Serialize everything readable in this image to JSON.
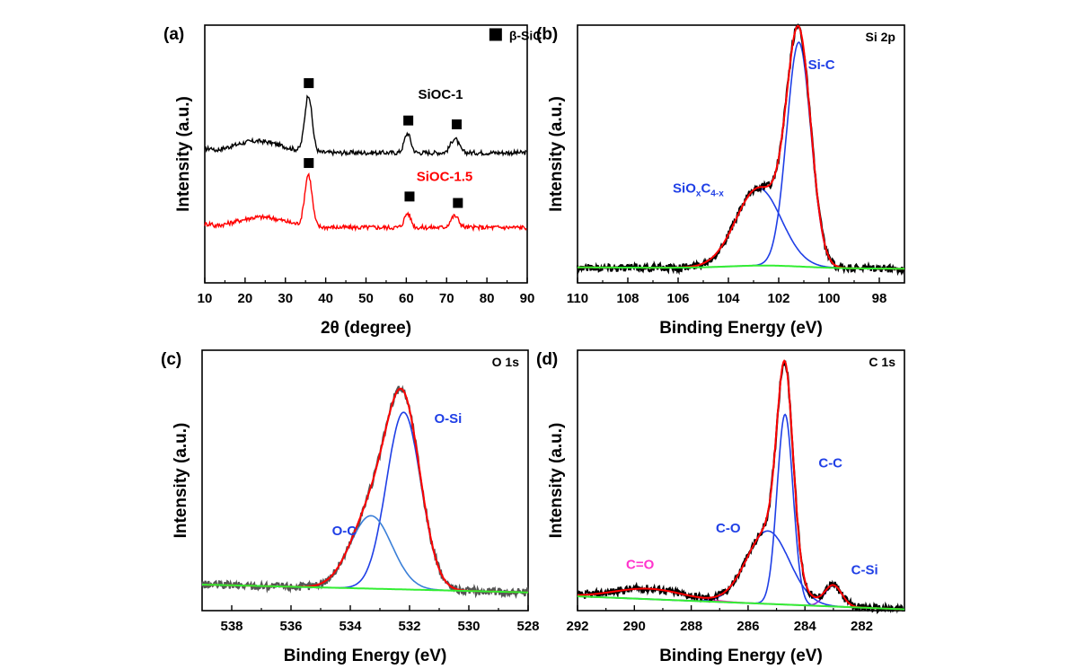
{
  "chart_data": [
    {
      "panel": "(a)",
      "type": "line",
      "xlabel": "2θ (degree)",
      "ylabel": "Intensity (a.u.)",
      "xlim": [
        10,
        90
      ],
      "ylim": [
        0,
        10
      ],
      "xticks": [
        10,
        20,
        30,
        40,
        50,
        60,
        70,
        80,
        90
      ],
      "legend": {
        "label": "β-SiC",
        "position": "top-right",
        "marker": "square"
      },
      "series": [
        {
          "name": "SiOC-1",
          "color": "#000000",
          "offset": 5.05,
          "peaks": [
            {
              "x": 35.7,
              "h": 2.2,
              "w": 0.9
            },
            {
              "x": 60.3,
              "h": 0.75,
              "w": 0.8
            },
            {
              "x": 72.0,
              "h": 0.55,
              "w": 1.0
            }
          ],
          "hump": {
            "x": 23,
            "h": 0.45,
            "w": 6
          }
        },
        {
          "name": "SiOC-1.5",
          "color": "#ff0000",
          "offset": 2.15,
          "peaks": [
            {
              "x": 35.7,
              "h": 2.0,
              "w": 0.9
            },
            {
              "x": 60.3,
              "h": 0.55,
              "w": 0.8
            },
            {
              "x": 72.0,
              "h": 0.45,
              "w": 1.0
            }
          ],
          "hump": {
            "x": 24,
            "h": 0.4,
            "w": 6
          }
        }
      ],
      "markers": [
        {
          "x": 35.8,
          "y": 7.75
        },
        {
          "x": 60.5,
          "y": 6.3
        },
        {
          "x": 72.5,
          "y": 6.15
        },
        {
          "x": 35.8,
          "y": 4.65
        },
        {
          "x": 60.8,
          "y": 3.35
        },
        {
          "x": 72.8,
          "y": 3.1
        }
      ],
      "annotations": [
        {
          "text": "SiOC-1",
          "x": 68.5,
          "y": 7.15,
          "color": "#000000"
        },
        {
          "text": "SiOC-1.5",
          "x": 69.5,
          "y": 3.95,
          "color": "#ff0000"
        }
      ]
    },
    {
      "panel": "(b)",
      "type": "line",
      "tag": "Si 2p",
      "xlabel": "Binding Energy (eV)",
      "ylabel": "Intensity (a.u.)",
      "xlim": [
        110,
        97
      ],
      "ylim": [
        0,
        10
      ],
      "xticks": [
        110,
        108,
        106,
        104,
        102,
        100,
        98
      ],
      "baseline": {
        "color": "#33ee33",
        "from": 0.6,
        "to": 0.55,
        "bump_x": 102.5,
        "bump_h": 0.1
      },
      "components": [
        {
          "name": "Si-C",
          "color": "#1f3fe6",
          "center": 101.2,
          "height": 8.7,
          "sigma": 0.48
        },
        {
          "name": "SiOxC4-x",
          "color": "#1f3fe6",
          "center": 102.8,
          "height": 3.0,
          "sigma": 0.9
        }
      ],
      "fit_color": "#ff0000",
      "data_color": "#000000",
      "annotations": [
        {
          "text": "Si-C",
          "x": 100.3,
          "y": 8.3,
          "color": "#1f3fe6"
        },
        {
          "text": "SiO",
          "sub1": "x",
          "mid": "C",
          "sub2": "4-x",
          "x": 105.2,
          "y": 3.5,
          "color": "#1f3fe6"
        }
      ]
    },
    {
      "panel": "(c)",
      "type": "line",
      "tag": "O 1s",
      "xlabel": "Binding Energy (eV)",
      "ylabel": "Intensity (a.u.)",
      "xlim": [
        539,
        528
      ],
      "ylim": [
        0,
        10
      ],
      "xticks": [
        538,
        536,
        534,
        532,
        530,
        528
      ],
      "baseline": {
        "color": "#33ee33",
        "from": 1.0,
        "to": 0.7,
        "bump_x": 533,
        "bump_h": 0.0
      },
      "components": [
        {
          "name": "O-Si",
          "color": "#1f3fe6",
          "center": 532.2,
          "height": 6.8,
          "sigma": 0.58
        },
        {
          "name": "O-C",
          "color": "#3a7fd8",
          "center": 533.3,
          "height": 2.8,
          "sigma": 0.7
        }
      ],
      "fit_color": "#ff0000",
      "data_color": "#555555",
      "annotations": [
        {
          "text": "O-Si",
          "x": 530.7,
          "y": 7.2,
          "color": "#1f3fe6"
        },
        {
          "text": "O-C",
          "x": 534.2,
          "y": 2.9,
          "color": "#1f3fe6"
        }
      ]
    },
    {
      "panel": "(d)",
      "type": "line",
      "tag": "C 1s",
      "xlabel": "Binding Energy (eV)",
      "ylabel": "Intensity (a.u.)",
      "xlim": [
        292,
        280.5
      ],
      "ylim": [
        0,
        10
      ],
      "xticks": [
        292,
        290,
        288,
        286,
        284,
        282
      ],
      "baseline": {
        "color": "#33ee33",
        "from": 0.55,
        "to": 0.05,
        "bump_x": 285,
        "bump_h": 0.0
      },
      "components": [
        {
          "name": "C-C",
          "color": "#1f3fe6",
          "center": 284.7,
          "height": 7.3,
          "sigma": 0.28
        },
        {
          "name": "C-O",
          "color": "#1f3fe6",
          "center": 285.3,
          "height": 2.8,
          "sigma": 0.75
        },
        {
          "name": "C-Si",
          "color": "#8a2be2",
          "center": 283.0,
          "height": 0.8,
          "sigma": 0.3
        },
        {
          "name": "C=O",
          "color": "#ff33cc",
          "center": 289.5,
          "height": 0.4,
          "sigma": 1.2
        }
      ],
      "fit_color": "#ff0000",
      "data_color": "#000000",
      "annotations": [
        {
          "text": "C-C",
          "x": 283.1,
          "y": 5.5,
          "color": "#1f3fe6"
        },
        {
          "text": "C-O",
          "x": 286.7,
          "y": 3.0,
          "color": "#1f3fe6"
        },
        {
          "text": "C-Si",
          "x": 281.9,
          "y": 1.4,
          "color": "#1f3fe6"
        },
        {
          "text": "C=O",
          "x": 289.8,
          "y": 1.6,
          "color": "#ff33cc"
        }
      ]
    }
  ]
}
